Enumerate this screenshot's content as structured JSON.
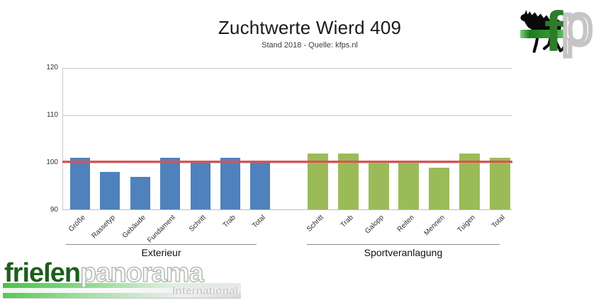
{
  "header": {
    "title": "Zuchtwerte Wierd 409",
    "subtitle": "Stand 2018 - Quelle: kfps.nl"
  },
  "chart_data": {
    "type": "bar",
    "title": "Zuchtwerte Wierd 409",
    "subtitle": "Stand 2018 - Quelle: kfps.nl",
    "ylim": [
      90,
      120
    ],
    "yticks": [
      90,
      100,
      110,
      120
    ],
    "grid": true,
    "legend": false,
    "reference_line": {
      "value": 100,
      "color": "#e05050"
    },
    "groups": [
      {
        "name": "Exterieur",
        "color": "#4f81bd",
        "categories": [
          "Größe",
          "Rassetyp",
          "Gebäude",
          "Fundament",
          "Schritt",
          "Trab",
          "Total"
        ],
        "values": [
          101,
          98,
          97,
          101,
          100,
          101,
          100
        ]
      },
      {
        "name": "Sportveranlagung",
        "color": "#9bbb59",
        "categories": [
          "Schritt",
          "Trab",
          "Galopp",
          "Reiten",
          "Mennen",
          "Tuigen",
          "Total"
        ],
        "values": [
          102,
          102,
          100,
          100,
          99,
          102,
          101
        ]
      }
    ]
  },
  "branding": {
    "mark": {
      "f_letter": "f",
      "p_letter": "p"
    },
    "footer": {
      "brand_part1": "frieſen",
      "brand_part2": "panorama",
      "tagline": "International",
      "brand_green": "#1d5e1d"
    }
  }
}
